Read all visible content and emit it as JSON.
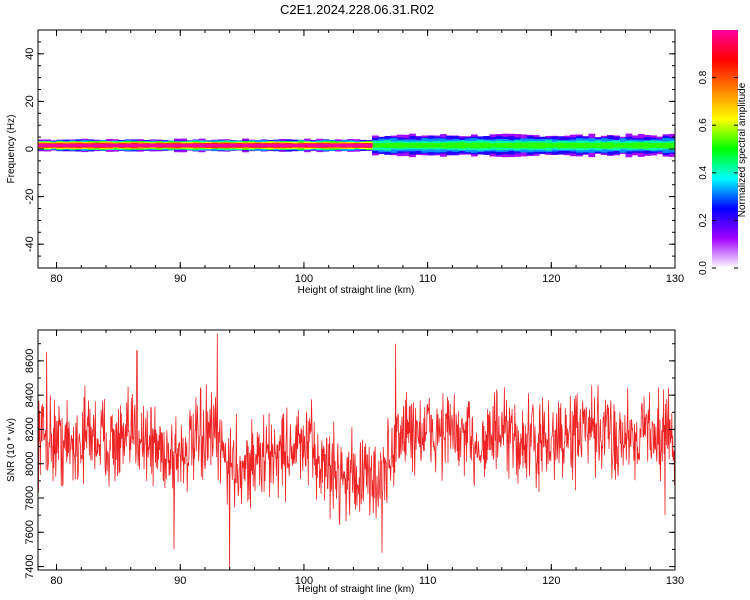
{
  "title": "C2E1.2024.228.06.31.R02",
  "chart_data": [
    {
      "type": "heatmap",
      "title": "C2E1.2024.228.06.31.R02",
      "xlabel": "Height of straight line (km)",
      "ylabel": "Frequency (Hz)",
      "xlim": [
        78.5,
        130
      ],
      "ylim": [
        -50,
        50
      ],
      "x_ticks": [
        80,
        90,
        100,
        110,
        120,
        130
      ],
      "y_ticks": [
        40,
        20,
        0,
        -20,
        -40
      ],
      "colorbar": {
        "label": "Normalized spectral amplitude",
        "range": [
          0,
          1
        ],
        "ticks": [
          0.0,
          0.2,
          0.4,
          0.6,
          0.8
        ],
        "colormap": [
          "#ffffff",
          "#a000ff",
          "#0000ff",
          "#00ffff",
          "#00ff00",
          "#ffff00",
          "#ff8000",
          "#ff0000",
          "#ff00a0"
        ]
      },
      "band": {
        "center_hz": 1.5,
        "segments": [
          {
            "x_start": 78.5,
            "x_end": 105.5,
            "peak_amplitude": 1.0,
            "halfwidth_hz": 1.2
          },
          {
            "x_start": 105.5,
            "x_end": 130,
            "peak_amplitude": 0.55,
            "halfwidth_hz": 2.5
          }
        ]
      }
    },
    {
      "type": "line",
      "xlabel": "Height of straight line (km)",
      "ylabel": "SNR (10 * v/v)",
      "xlim": [
        78.5,
        130
      ],
      "ylim": [
        7380,
        8780
      ],
      "x_ticks": [
        80,
        90,
        100,
        110,
        120,
        130
      ],
      "y_ticks": [
        7400,
        7600,
        7800,
        8000,
        8200,
        8400,
        8600
      ],
      "color": "#ee2222",
      "series": [
        {
          "x": [
            78.5,
            79.5,
            80.5,
            81.5,
            82.5,
            83.5,
            84.5,
            85.5,
            86.5,
            87.5,
            88.5,
            89.5,
            90.5,
            91.5,
            92.5,
            93.5,
            94.5,
            95.5,
            96.5,
            97.5,
            98.5,
            99.5,
            100.5,
            101.5,
            102.5,
            103.5,
            104.5,
            105.5,
            106.5,
            107.5,
            108.5,
            109.5,
            110.5,
            111.5,
            112.5,
            113.5,
            114.5,
            115.5,
            116.5,
            117.5,
            118.5,
            119.5,
            120.5,
            121.5,
            122.5,
            123.5,
            124.5,
            125.5,
            126.5,
            127.5,
            128.5,
            129.5
          ],
          "y": [
            8180,
            8150,
            8120,
            8100,
            8180,
            8150,
            8120,
            8100,
            8200,
            8120,
            8080,
            8050,
            8080,
            8120,
            8180,
            8050,
            7980,
            8000,
            8020,
            8050,
            8080,
            8100,
            8080,
            8000,
            7950,
            7930,
            7920,
            7900,
            7920,
            8150,
            8200,
            8180,
            8170,
            8200,
            8150,
            8120,
            8130,
            8180,
            8140,
            8120,
            8130,
            8100,
            8150,
            8140,
            8200,
            8160,
            8180,
            8150,
            8170,
            8200,
            8180,
            8160
          ],
          "amplitude": 260,
          "spikes": [
            {
              "x": 79.2,
              "y": 8650
            },
            {
              "x": 86.5,
              "y": 8660
            },
            {
              "x": 93.0,
              "y": 8760
            },
            {
              "x": 94.0,
              "y": 7390
            },
            {
              "x": 89.5,
              "y": 7500
            },
            {
              "x": 107.4,
              "y": 8700
            },
            {
              "x": 106.3,
              "y": 7480
            },
            {
              "x": 129.2,
              "y": 7700
            }
          ]
        }
      ]
    }
  ]
}
